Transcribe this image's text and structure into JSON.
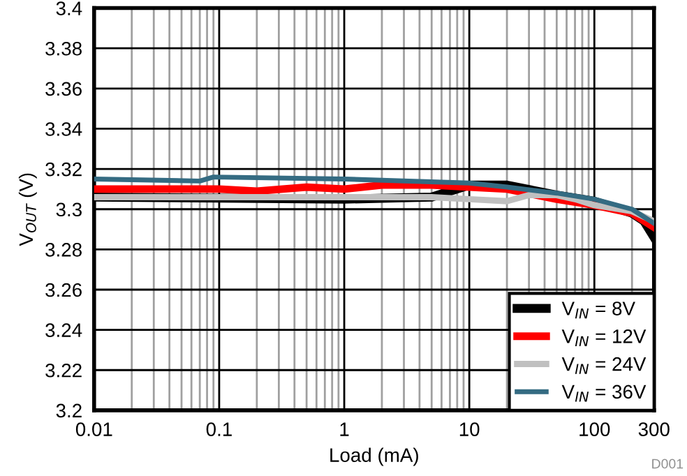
{
  "chart_data": {
    "type": "line",
    "xlabel": "Load (mA)",
    "ylabel": "V$_{OUT}$ (V)",
    "log": "x",
    "xlim": [
      0.01,
      300
    ],
    "xticks": [
      0.01,
      0.1,
      1,
      10,
      100,
      300
    ],
    "ylim": [
      3.2,
      3.4
    ],
    "yticks": [
      3.2,
      3.22,
      3.24,
      3.26,
      3.28,
      3.3,
      3.32,
      3.34,
      3.36,
      3.38,
      3.4
    ],
    "grid": true,
    "legend": "bottom right",
    "line_style": "solid",
    "annotations": [
      "D001"
    ],
    "series": [
      {
        "name": "V$_{IN}$ = 8V",
        "color": "#000000",
        "x": [
          0.01,
          1,
          5,
          10,
          20,
          50,
          100,
          200,
          250,
          300
        ],
        "values": [
          3.306,
          3.305,
          3.306,
          3.312,
          3.312,
          3.307,
          3.304,
          3.298,
          3.294,
          3.286
        ]
      },
      {
        "name": "V$_{IN}$ = 12V",
        "color": "#ff0000",
        "x": [
          0.01,
          0.1,
          0.2,
          0.5,
          1,
          2,
          5,
          10,
          20,
          50,
          100,
          200,
          300
        ],
        "values": [
          3.31,
          3.31,
          3.309,
          3.311,
          3.31,
          3.312,
          3.312,
          3.311,
          3.31,
          3.305,
          3.302,
          3.298,
          3.291
        ]
      },
      {
        "name": "V$_{IN}$ = 24V",
        "color": "#c0c0c0",
        "x": [
          0.01,
          1,
          5,
          10,
          20,
          30,
          50,
          70,
          100,
          200,
          300
        ],
        "values": [
          3.306,
          3.306,
          3.306,
          3.305,
          3.304,
          3.307,
          3.307,
          3.305,
          3.302,
          3.299,
          3.294
        ]
      },
      {
        "name": "V$_{IN}$ = 36V",
        "color": "#346b82",
        "x": [
          0.01,
          0.07,
          0.09,
          1,
          10,
          20,
          50,
          100,
          200,
          300
        ],
        "values": [
          3.315,
          3.314,
          3.316,
          3.315,
          3.313,
          3.311,
          3.308,
          3.305,
          3.3,
          3.293
        ]
      }
    ]
  }
}
